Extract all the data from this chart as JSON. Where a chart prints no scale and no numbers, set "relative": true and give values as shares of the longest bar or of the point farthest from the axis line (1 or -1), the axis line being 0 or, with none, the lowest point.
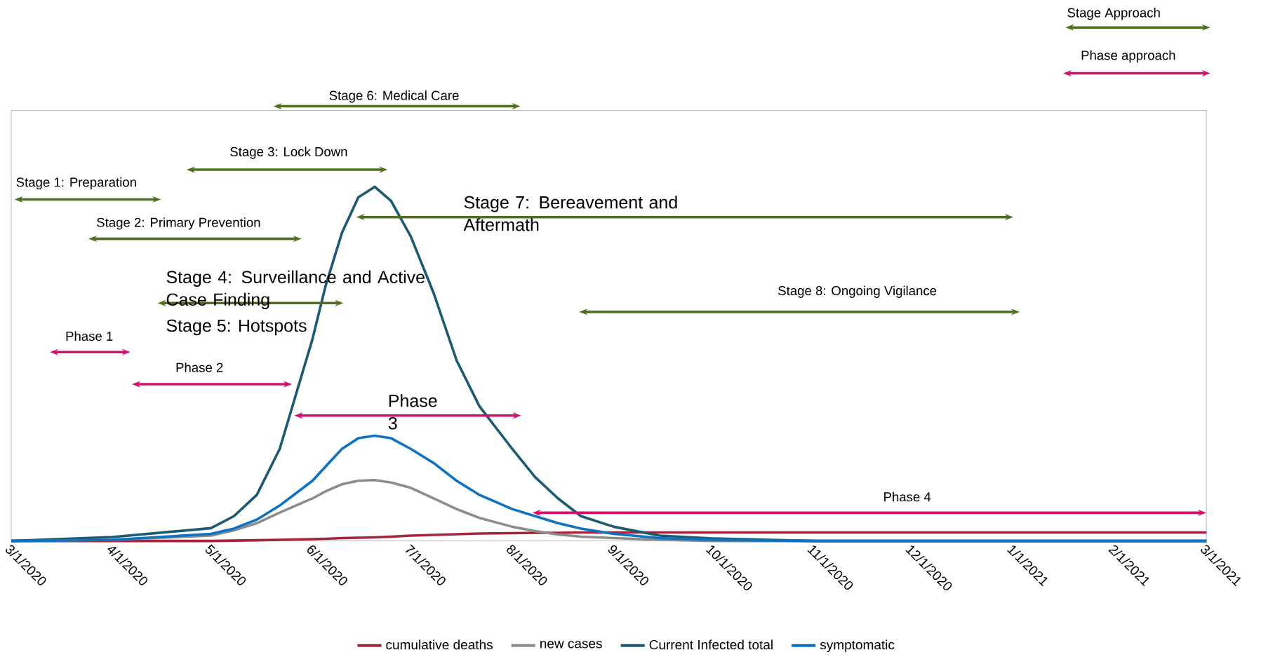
{
  "chart_data": {
    "type": "line",
    "relative": true,
    "legend": "bottom",
    "grid": false,
    "marker": "none",
    "line_style": "solid",
    "x": [
      "2020-03-01",
      "2020-04-01",
      "2020-05-01",
      "2020-05-08",
      "2020-05-15",
      "2020-05-22",
      "2020-06-01",
      "2020-06-05",
      "2020-06-10",
      "2020-06-15",
      "2020-06-20",
      "2020-06-25",
      "2020-07-01",
      "2020-07-08",
      "2020-07-15",
      "2020-07-22",
      "2020-08-01",
      "2020-08-08",
      "2020-08-15",
      "2020-08-22",
      "2020-09-01",
      "2020-09-15",
      "2020-10-01",
      "2020-11-01",
      "2021-03-01"
    ],
    "xlim": [
      "2020-03-01",
      "2021-03-01"
    ],
    "xticks": [
      {
        "value": "2020-03-01",
        "label": "3/1/2020"
      },
      {
        "value": "2020-04-01",
        "label": "4/1/2020"
      },
      {
        "value": "2020-05-01",
        "label": "5/1/2020"
      },
      {
        "value": "2020-06-01",
        "label": "6/1/2020"
      },
      {
        "value": "2020-07-01",
        "label": "7/1/2020"
      },
      {
        "value": "2020-08-01",
        "label": "8/1/2020"
      },
      {
        "value": "2020-09-01",
        "label": "9/1/2020"
      },
      {
        "value": "2020-10-01",
        "label": "10/1/2020"
      },
      {
        "value": "2020-11-01",
        "label": "11/1/2020"
      },
      {
        "value": "2020-12-01",
        "label": "12/1/2020"
      },
      {
        "value": "2021-01-01",
        "label": "1/1/2021"
      },
      {
        "value": "2021-02-01",
        "label": "2/1/2021"
      },
      {
        "value": "2021-03-01",
        "label": "3/1/2021"
      }
    ],
    "series": [
      {
        "name": "cumulative deaths",
        "color": "#a5243d",
        "values": [
          0,
          0,
          0,
          0.001,
          0.002,
          0.003,
          0.005,
          0.006,
          0.008,
          0.009,
          0.01,
          0.012,
          0.015,
          0.017,
          0.019,
          0.021,
          0.022,
          0.023,
          0.023,
          0.024,
          0.024,
          0.024,
          0.024,
          0.024,
          0.024
        ]
      },
      {
        "name": "new cases",
        "color": "#8c8c8c",
        "values": [
          0,
          0.003,
          0.015,
          0.03,
          0.05,
          0.08,
          0.12,
          0.14,
          0.16,
          0.17,
          0.172,
          0.165,
          0.15,
          0.12,
          0.09,
          0.065,
          0.04,
          0.028,
          0.018,
          0.012,
          0.008,
          0.003,
          0,
          0,
          0
        ]
      },
      {
        "name": "Current Infected total",
        "color": "#1b5a70",
        "values": [
          0,
          0.011,
          0.036,
          0.07,
          0.13,
          0.26,
          0.57,
          0.72,
          0.87,
          0.97,
          1,
          0.96,
          0.86,
          0.7,
          0.51,
          0.38,
          0.26,
          0.18,
          0.12,
          0.07,
          0.04,
          0.015,
          0.007,
          0,
          0
        ]
      },
      {
        "name": "symptomatic",
        "color": "#0b72c4",
        "values": [
          0,
          0.003,
          0.02,
          0.035,
          0.06,
          0.1,
          0.17,
          0.21,
          0.26,
          0.29,
          0.297,
          0.29,
          0.26,
          0.22,
          0.17,
          0.13,
          0.09,
          0.07,
          0.05,
          0.035,
          0.02,
          0.008,
          0.003,
          0,
          0
        ]
      }
    ],
    "annotations": [
      "Stage Approach",
      "Phase approach",
      "Stage 6: Medical Care",
      "Stage 3: Lock Down",
      "Stage 1: Preparation",
      "Stage 2: Primary Prevention",
      "Stage 7: Bereavement and Aftermath",
      "Stage 4: Surveillance and Active Case Finding",
      "Stage 5: Hotspots",
      "Stage 8: Ongoing Vigilance",
      "Phase 1",
      "Phase 2",
      "Phase 3",
      "Phase 4"
    ]
  }
}
